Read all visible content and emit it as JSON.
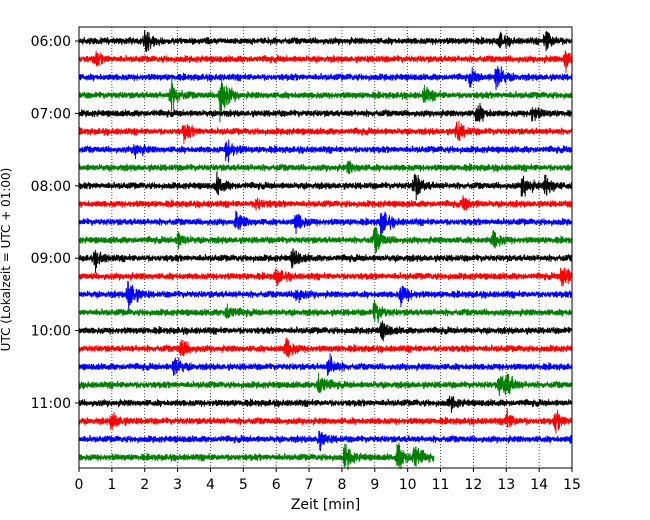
{
  "chart_data": {
    "type": "line",
    "title": "",
    "xlabel": "Zeit  [min]",
    "ylabel": "UTC (Lokalzeit = UTC + 01:00)",
    "xlim": [
      0,
      15
    ],
    "x_ticks": [
      "0",
      "1",
      "2",
      "3",
      "4",
      "5",
      "6",
      "7",
      "8",
      "9",
      "10",
      "11",
      "12",
      "13",
      "14",
      "15"
    ],
    "y_ticks": [
      {
        "label": "06:00",
        "trace": 0
      },
      {
        "label": "07:00",
        "trace": 4
      },
      {
        "label": "08:00",
        "trace": 8
      },
      {
        "label": "09:00",
        "trace": 12
      },
      {
        "label": "10:00",
        "trace": 16
      },
      {
        "label": "11:00",
        "trace": 20
      }
    ],
    "grid": {
      "x": true,
      "y": false,
      "style": "dotted"
    },
    "trace_colors": [
      "#000000",
      "#ff0000",
      "#0000ff",
      "#008000"
    ],
    "trace_count": 24,
    "last_trace_end_min": 10.8,
    "events": [
      {
        "trace": 0,
        "t": 2.0,
        "amp": 1.6
      },
      {
        "trace": 0,
        "t": 14.2,
        "amp": 1.4
      },
      {
        "trace": 0,
        "t": 12.8,
        "amp": 0.9
      },
      {
        "trace": 1,
        "t": 14.8,
        "amp": 1.5
      },
      {
        "trace": 1,
        "t": 0.5,
        "amp": 0.8
      },
      {
        "trace": 2,
        "t": 12.7,
        "amp": 1.9
      },
      {
        "trace": 2,
        "t": 11.9,
        "amp": 0.9
      },
      {
        "trace": 3,
        "t": 4.3,
        "amp": 3.2
      },
      {
        "trace": 3,
        "t": 2.8,
        "amp": 1.8
      },
      {
        "trace": 3,
        "t": 10.5,
        "amp": 1.0
      },
      {
        "trace": 4,
        "t": 12.1,
        "amp": 1.3
      },
      {
        "trace": 4,
        "t": 13.8,
        "amp": 1.0
      },
      {
        "trace": 5,
        "t": 3.2,
        "amp": 1.1
      },
      {
        "trace": 5,
        "t": 11.5,
        "amp": 1.3
      },
      {
        "trace": 6,
        "t": 4.5,
        "amp": 1.5
      },
      {
        "trace": 6,
        "t": 1.7,
        "amp": 0.9
      },
      {
        "trace": 7,
        "t": 8.2,
        "amp": 0.7
      },
      {
        "trace": 8,
        "t": 10.2,
        "amp": 1.8
      },
      {
        "trace": 8,
        "t": 14.2,
        "amp": 1.5
      },
      {
        "trace": 8,
        "t": 13.5,
        "amp": 1.5
      },
      {
        "trace": 8,
        "t": 4.2,
        "amp": 1.2
      },
      {
        "trace": 9,
        "t": 5.4,
        "amp": 0.8
      },
      {
        "trace": 9,
        "t": 11.7,
        "amp": 0.8
      },
      {
        "trace": 10,
        "t": 9.2,
        "amp": 1.7
      },
      {
        "trace": 10,
        "t": 6.6,
        "amp": 1.3
      },
      {
        "trace": 10,
        "t": 4.8,
        "amp": 1.2
      },
      {
        "trace": 11,
        "t": 9.0,
        "amp": 1.7
      },
      {
        "trace": 11,
        "t": 12.6,
        "amp": 1.2
      },
      {
        "trace": 11,
        "t": 3.0,
        "amp": 0.9
      },
      {
        "trace": 12,
        "t": 6.5,
        "amp": 1.2
      },
      {
        "trace": 12,
        "t": 0.5,
        "amp": 1.0
      },
      {
        "trace": 13,
        "t": 14.7,
        "amp": 1.8
      },
      {
        "trace": 13,
        "t": 6.0,
        "amp": 1.0
      },
      {
        "trace": 14,
        "t": 1.5,
        "amp": 2.2
      },
      {
        "trace": 14,
        "t": 9.8,
        "amp": 1.3
      },
      {
        "trace": 14,
        "t": 6.6,
        "amp": 1.0
      },
      {
        "trace": 15,
        "t": 9.0,
        "amp": 1.4
      },
      {
        "trace": 15,
        "t": 4.5,
        "amp": 1.0
      },
      {
        "trace": 16,
        "t": 9.2,
        "amp": 1.2
      },
      {
        "trace": 17,
        "t": 3.1,
        "amp": 1.2
      },
      {
        "trace": 17,
        "t": 6.3,
        "amp": 1.4
      },
      {
        "trace": 18,
        "t": 2.9,
        "amp": 1.4
      },
      {
        "trace": 18,
        "t": 7.6,
        "amp": 1.5
      },
      {
        "trace": 19,
        "t": 7.3,
        "amp": 1.6
      },
      {
        "trace": 19,
        "t": 12.8,
        "amp": 1.4
      },
      {
        "trace": 19,
        "t": 13.0,
        "amp": 1.2
      },
      {
        "trace": 20,
        "t": 11.3,
        "amp": 0.8
      },
      {
        "trace": 21,
        "t": 1.0,
        "amp": 1.1
      },
      {
        "trace": 21,
        "t": 13.0,
        "amp": 1.1
      },
      {
        "trace": 21,
        "t": 14.5,
        "amp": 1.2
      },
      {
        "trace": 22,
        "t": 7.3,
        "amp": 1.1
      },
      {
        "trace": 22,
        "t": 15.0,
        "amp": 0.8
      },
      {
        "trace": 23,
        "t": 9.7,
        "amp": 1.8
      },
      {
        "trace": 23,
        "t": 8.1,
        "amp": 1.6
      },
      {
        "trace": 23,
        "t": 10.2,
        "amp": 1.7
      }
    ]
  }
}
